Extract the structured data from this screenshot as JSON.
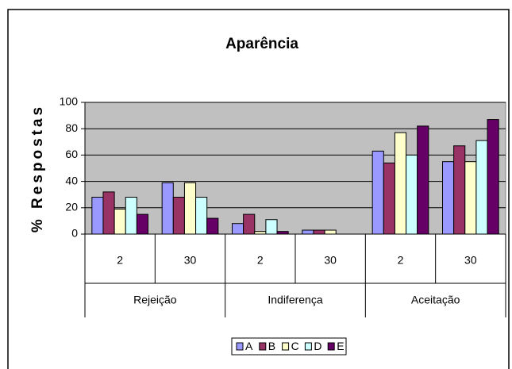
{
  "chart_data": {
    "type": "bar",
    "title": "Aparência",
    "y_label": "% Respostas",
    "categories": [
      "2",
      "30",
      "2",
      "30",
      "2",
      "30"
    ],
    "groups": [
      "Rejeição",
      "Indiferença",
      "Aceitação"
    ],
    "series": [
      {
        "name": "A",
        "color": "#9999ff",
        "values": [
          28,
          39,
          8,
          3,
          63,
          55
        ]
      },
      {
        "name": "B",
        "color": "#993366",
        "values": [
          32,
          28,
          15,
          3,
          54,
          67
        ]
      },
      {
        "name": "C",
        "color": "#ffffcc",
        "values": [
          19,
          39,
          2,
          3,
          77,
          55
        ]
      },
      {
        "name": "D",
        "color": "#ccffff",
        "values": [
          28,
          28,
          11,
          0,
          60,
          71
        ]
      },
      {
        "name": "E",
        "color": "#660066",
        "values": [
          15,
          12,
          2,
          0,
          82,
          87
        ]
      }
    ],
    "ylim": [
      0,
      100
    ],
    "yticks": [
      0,
      20,
      40,
      60,
      80,
      100
    ],
    "grid": true,
    "legend": "bottom"
  }
}
